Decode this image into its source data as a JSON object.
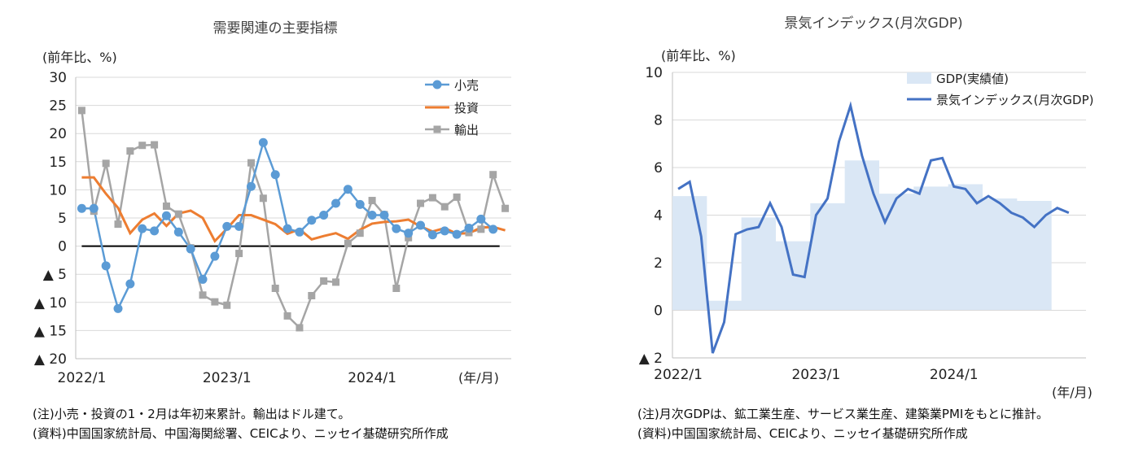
{
  "left": {
    "title": "需要関連の主要指標",
    "unit": "(前年比、%)",
    "xunit": "(年/月)",
    "note1": "(注)小売・投資の1・2月は年初来累計。輸出はドル建て。",
    "note2": "(資料)中国国家統計局、中国海関総署、CEICより、ニッセイ基礎研究所作成"
  },
  "right": {
    "title": "景気インデックス(月次GDP)",
    "unit": "(前年比、%)",
    "xunit": "(年/月)",
    "note1": "(注)月次GDPは、鉱工業生産、サービス業生産、建築業PMIをもとに推計。",
    "note2": "(資料)中国国家統計局、CEICより、ニッセイ基礎研究所作成"
  },
  "colors": {
    "retail": "#5b9bd5",
    "invest": "#ed7d31",
    "exports": "#a5a5a5",
    "gdpArea": "#dae7f5",
    "index": "#4472c4"
  },
  "chart_data": [
    {
      "type": "line",
      "title": "需要関連の主要指標",
      "ylabel": "(前年比、%)",
      "xlabel": "(年/月)",
      "ylim": [
        -20,
        30
      ],
      "yticks": [
        30,
        25,
        20,
        15,
        10,
        5,
        0,
        -5,
        -10,
        -15,
        -20
      ],
      "ytick_labels": [
        "30",
        "25",
        "20",
        "15",
        "10",
        "5",
        "0",
        "▲ 5",
        "▲ 10",
        "▲ 15",
        "▲ 20"
      ],
      "x_start": "2022/1",
      "xtick_labels": [
        "2022/1",
        "2023/1",
        "2024/1"
      ],
      "legend_position": "top-right",
      "series": [
        {
          "name": "小売",
          "start_index": 0,
          "values": [
            6.7,
            6.7,
            -3.5,
            -11.1,
            -6.7,
            3.1,
            2.7,
            5.4,
            2.5,
            -0.5,
            -5.9,
            -1.8,
            3.5,
            3.5,
            10.6,
            18.4,
            12.7,
            3.1,
            2.5,
            4.6,
            5.5,
            7.6,
            10.1,
            7.4,
            5.5,
            5.5,
            3.1,
            2.3,
            3.7,
            2.0,
            2.7,
            2.1,
            3.2,
            4.8,
            3.0
          ]
        },
        {
          "name": "投資",
          "start_index": 0,
          "values": [
            12.2,
            12.2,
            9.3,
            6.8,
            2.3,
            4.7,
            5.8,
            3.6,
            5.8,
            6.3,
            5.0,
            0.9,
            3.1,
            5.5,
            5.5,
            4.7,
            3.9,
            2.2,
            3.0,
            1.2,
            1.8,
            2.3,
            1.3,
            2.9,
            4.0,
            4.3,
            4.4,
            4.7,
            3.5,
            2.6,
            3.2,
            2.2,
            2.3,
            3.3,
            3.4,
            2.8
          ]
        },
        {
          "name": "輸出",
          "start_index": 0,
          "values": [
            24.1,
            6.2,
            14.7,
            3.9,
            16.9,
            17.9,
            18.0,
            7.1,
            5.7,
            -0.3,
            -8.7,
            -9.9,
            -10.5,
            -1.3,
            14.8,
            8.5,
            -7.5,
            -12.4,
            -14.5,
            -8.8,
            -6.2,
            -6.4,
            0.5,
            2.3,
            8.1,
            5.6,
            -7.5,
            1.5,
            7.6,
            8.6,
            7.0,
            8.7,
            2.4,
            3.0,
            12.7,
            6.7
          ]
        }
      ],
      "zero_line": true
    },
    {
      "type": "line",
      "title": "景気インデックス(月次GDP)",
      "ylabel": "(前年比、%)",
      "xlabel": "(年/月)",
      "ylim": [
        -2,
        10
      ],
      "yticks": [
        10,
        8,
        6,
        4,
        2,
        0,
        -2
      ],
      "ytick_labels": [
        "10",
        "8",
        "6",
        "4",
        "2",
        "0",
        "▲ 2"
      ],
      "x_start": "2022/1",
      "xtick_labels": [
        "2022/1",
        "2023/1",
        "2024/1"
      ],
      "legend_position": "top-right",
      "series": [
        {
          "name": "GDP(実績値)",
          "kind": "area",
          "values": [
            4.8,
            4.8,
            4.8,
            0.4,
            0.4,
            0.4,
            3.9,
            3.9,
            3.9,
            2.9,
            2.9,
            2.9,
            4.5,
            4.5,
            4.5,
            6.3,
            6.3,
            6.3,
            4.9,
            4.9,
            4.9,
            5.2,
            5.2,
            5.2,
            5.3,
            5.3,
            5.3,
            4.7,
            4.7,
            4.7,
            4.6,
            4.6,
            4.6
          ]
        },
        {
          "name": "景気インデックス(月次GDP)",
          "kind": "line",
          "values": [
            5.1,
            5.4,
            3.1,
            -1.8,
            -0.5,
            3.2,
            3.4,
            3.5,
            4.5,
            3.5,
            1.5,
            1.4,
            4.0,
            4.7,
            7.1,
            8.6,
            6.5,
            4.9,
            3.7,
            4.7,
            5.1,
            4.9,
            6.3,
            6.4,
            5.2,
            5.1,
            4.5,
            4.8,
            4.5,
            4.1,
            3.9,
            3.5,
            4.0,
            4.3,
            4.1
          ]
        }
      ]
    }
  ]
}
